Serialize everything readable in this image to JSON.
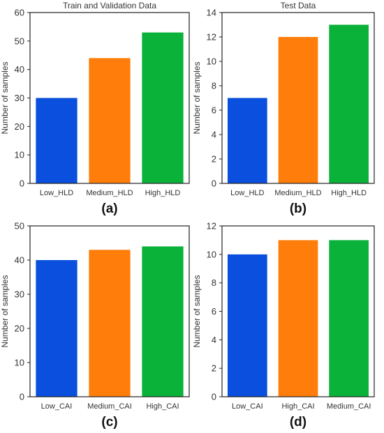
{
  "chart_data": [
    {
      "type": "bar",
      "title": "Train and Validation Data",
      "ylabel": "Number of samples",
      "panel_label": "(a)",
      "categories": [
        "Low_HLD",
        "Medium_HLD",
        "High_HLD"
      ],
      "values": [
        30,
        44,
        53
      ],
      "colors": [
        "#0a4fdd",
        "#ff7d0a",
        "#0ab23a"
      ],
      "ylim": [
        0,
        60
      ],
      "yticks": [
        0,
        10,
        20,
        30,
        40,
        50,
        60
      ],
      "grid": false
    },
    {
      "type": "bar",
      "title": "Test Data",
      "ylabel": "Number of samples",
      "panel_label": "(b)",
      "categories": [
        "Low_HLD",
        "Medium_HLD",
        "High_HLD"
      ],
      "values": [
        7,
        12,
        13
      ],
      "colors": [
        "#0a4fdd",
        "#ff7d0a",
        "#0ab23a"
      ],
      "ylim": [
        0,
        14
      ],
      "yticks": [
        0,
        2,
        4,
        6,
        8,
        10,
        12,
        14
      ],
      "grid": false
    },
    {
      "type": "bar",
      "title": "",
      "ylabel": "Number of samples",
      "panel_label": "(c)",
      "categories": [
        "Low_CAI",
        "Medium_CAI",
        "High_CAI"
      ],
      "values": [
        40,
        43,
        44
      ],
      "colors": [
        "#0a4fdd",
        "#ff7d0a",
        "#0ab23a"
      ],
      "ylim": [
        0,
        50
      ],
      "yticks": [
        0,
        10,
        20,
        30,
        40,
        50
      ],
      "grid": false
    },
    {
      "type": "bar",
      "title": "",
      "ylabel": "Number of samples",
      "panel_label": "(d)",
      "categories": [
        "Low_CAI",
        "High_CAI",
        "Medium_CAI"
      ],
      "values": [
        10,
        11,
        11
      ],
      "colors": [
        "#0a4fdd",
        "#ff7d0a",
        "#0ab23a"
      ],
      "ylim": [
        0,
        12
      ],
      "yticks": [
        0,
        2,
        4,
        6,
        8,
        10,
        12
      ],
      "grid": false
    }
  ]
}
